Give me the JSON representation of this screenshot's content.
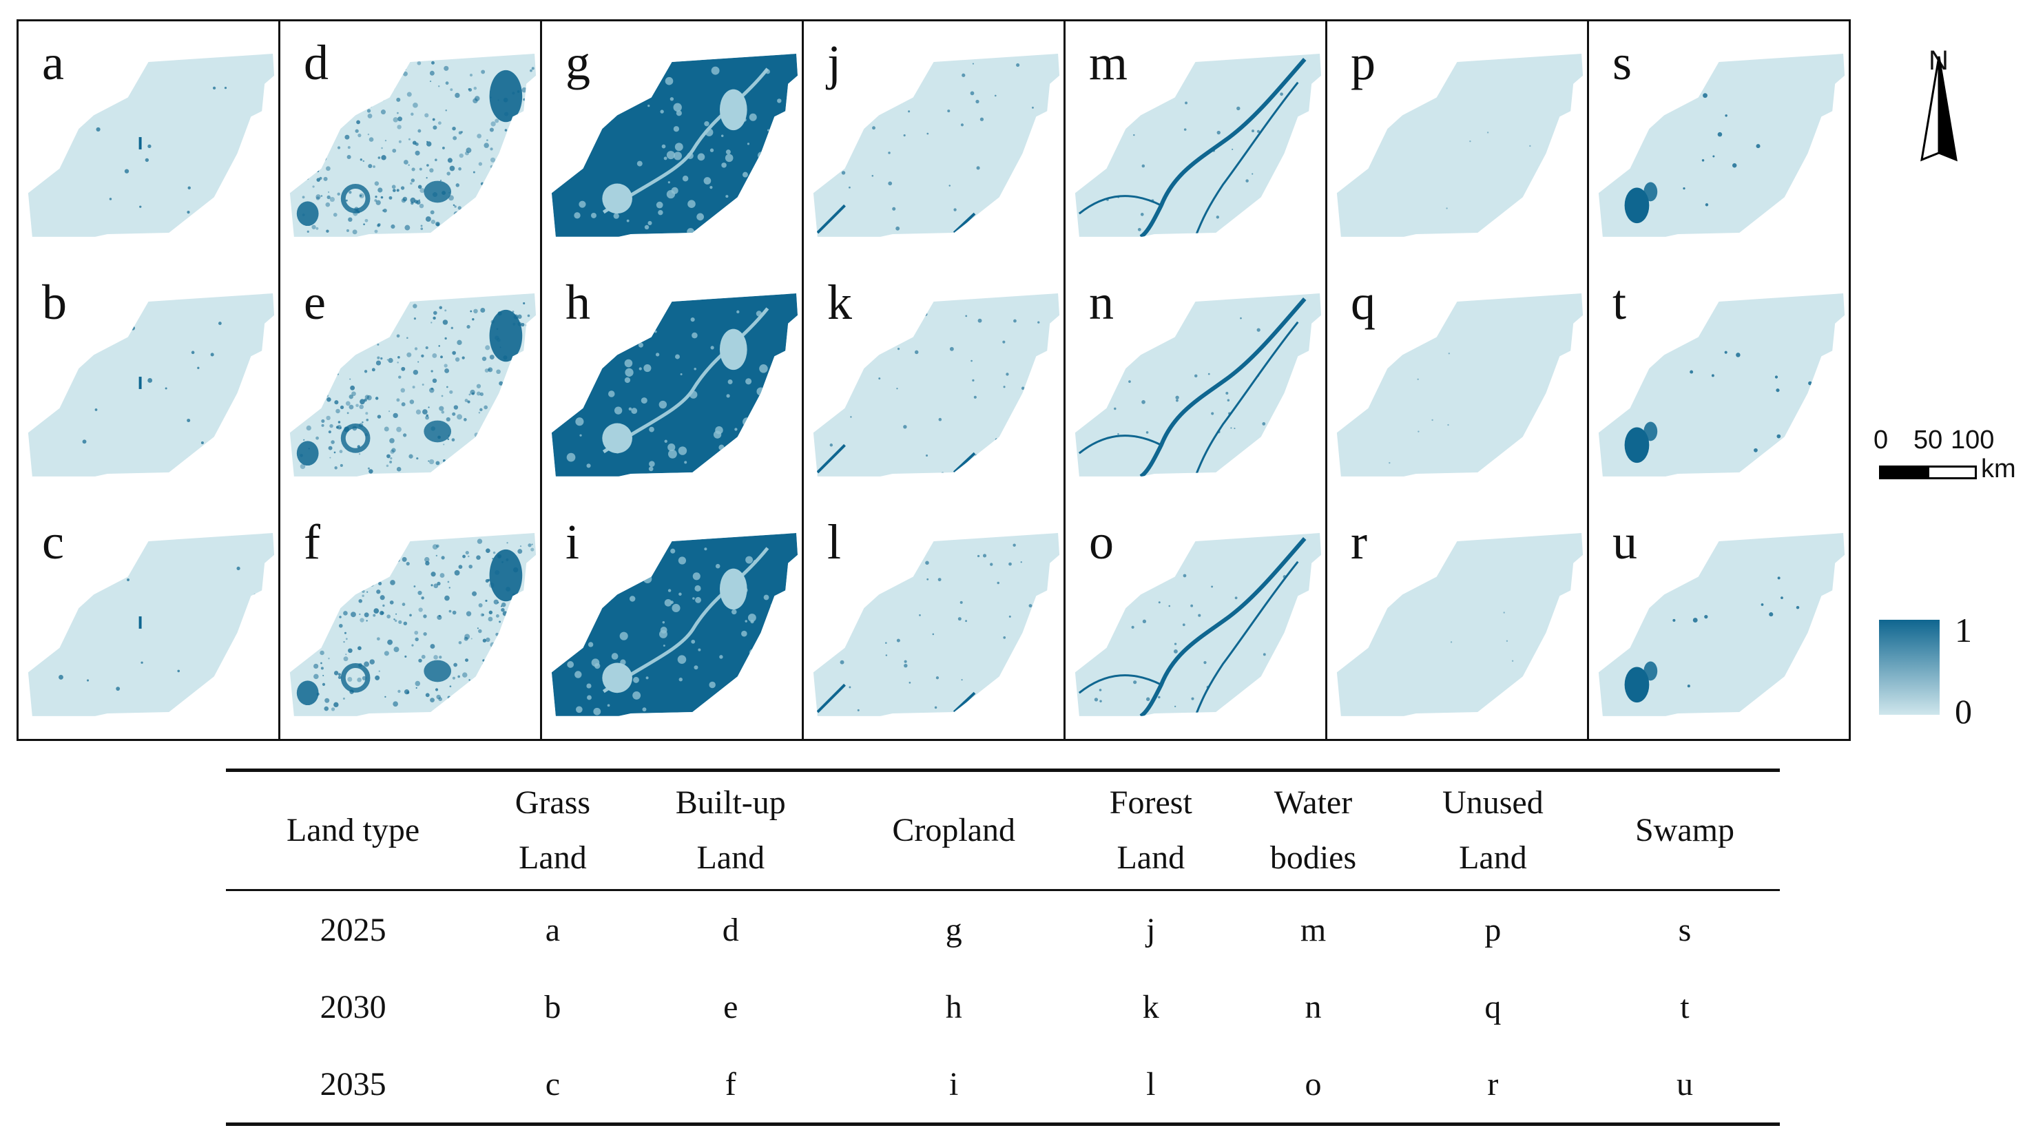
{
  "panels": [
    {
      "letter": "a",
      "land_type": "Grass Land",
      "year": "2025",
      "pattern": "grass"
    },
    {
      "letter": "b",
      "land_type": "Grass Land",
      "year": "2030",
      "pattern": "grass"
    },
    {
      "letter": "c",
      "land_type": "Grass Land",
      "year": "2035",
      "pattern": "grass"
    },
    {
      "letter": "d",
      "land_type": "Built-up Land",
      "year": "2025",
      "pattern": "builtup"
    },
    {
      "letter": "e",
      "land_type": "Built-up Land",
      "year": "2030",
      "pattern": "builtup"
    },
    {
      "letter": "f",
      "land_type": "Built-up Land",
      "year": "2035",
      "pattern": "builtup"
    },
    {
      "letter": "g",
      "land_type": "Cropland",
      "year": "2025",
      "pattern": "crop"
    },
    {
      "letter": "h",
      "land_type": "Cropland",
      "year": "2030",
      "pattern": "crop"
    },
    {
      "letter": "i",
      "land_type": "Cropland",
      "year": "2035",
      "pattern": "crop"
    },
    {
      "letter": "j",
      "land_type": "Forest Land",
      "year": "2025",
      "pattern": "forest"
    },
    {
      "letter": "k",
      "land_type": "Forest Land",
      "year": "2030",
      "pattern": "forest"
    },
    {
      "letter": "l",
      "land_type": "Forest Land",
      "year": "2035",
      "pattern": "forest"
    },
    {
      "letter": "m",
      "land_type": "Water bodies",
      "year": "2025",
      "pattern": "water"
    },
    {
      "letter": "n",
      "land_type": "Water bodies",
      "year": "2030",
      "pattern": "water"
    },
    {
      "letter": "o",
      "land_type": "Water bodies",
      "year": "2035",
      "pattern": "water"
    },
    {
      "letter": "p",
      "land_type": "Unused Land",
      "year": "2025",
      "pattern": "unused"
    },
    {
      "letter": "q",
      "land_type": "Unused Land",
      "year": "2030",
      "pattern": "unused"
    },
    {
      "letter": "r",
      "land_type": "Unused Land",
      "year": "2035",
      "pattern": "unused"
    },
    {
      "letter": "s",
      "land_type": "Swamp",
      "year": "2025",
      "pattern": "swamp"
    },
    {
      "letter": "t",
      "land_type": "Swamp",
      "year": "2030",
      "pattern": "swamp"
    },
    {
      "letter": "u",
      "land_type": "Swamp",
      "year": "2035",
      "pattern": "swamp"
    }
  ],
  "north_arrow": {
    "label": "N"
  },
  "scale_bar": {
    "ticks": [
      "0",
      "50",
      "100"
    ],
    "unit": "km"
  },
  "legend": {
    "max": "1",
    "min": "0",
    "color_high": "#0f6690",
    "color_low": "#cfe6ec"
  },
  "table": {
    "header": {
      "land_type": "Land type",
      "columns": [
        [
          "Grass",
          "Land"
        ],
        [
          "Built-up",
          "Land"
        ],
        [
          "Cropland"
        ],
        [
          "Forest",
          "Land"
        ],
        [
          "Water",
          "bodies"
        ],
        [
          "Unused",
          "Land"
        ],
        [
          "Swamp"
        ]
      ]
    },
    "rows": [
      {
        "year": "2025",
        "cells": [
          "a",
          "d",
          "g",
          "j",
          "m",
          "p",
          "s"
        ]
      },
      {
        "year": "2030",
        "cells": [
          "b",
          "e",
          "h",
          "k",
          "n",
          "q",
          "t"
        ]
      },
      {
        "year": "2035",
        "cells": [
          "c",
          "f",
          "i",
          "l",
          "o",
          "r",
          "u"
        ]
      }
    ]
  },
  "colors": {
    "map_base": "#cfe6ec",
    "map_high": "#0f6690",
    "frame": "#111111"
  }
}
